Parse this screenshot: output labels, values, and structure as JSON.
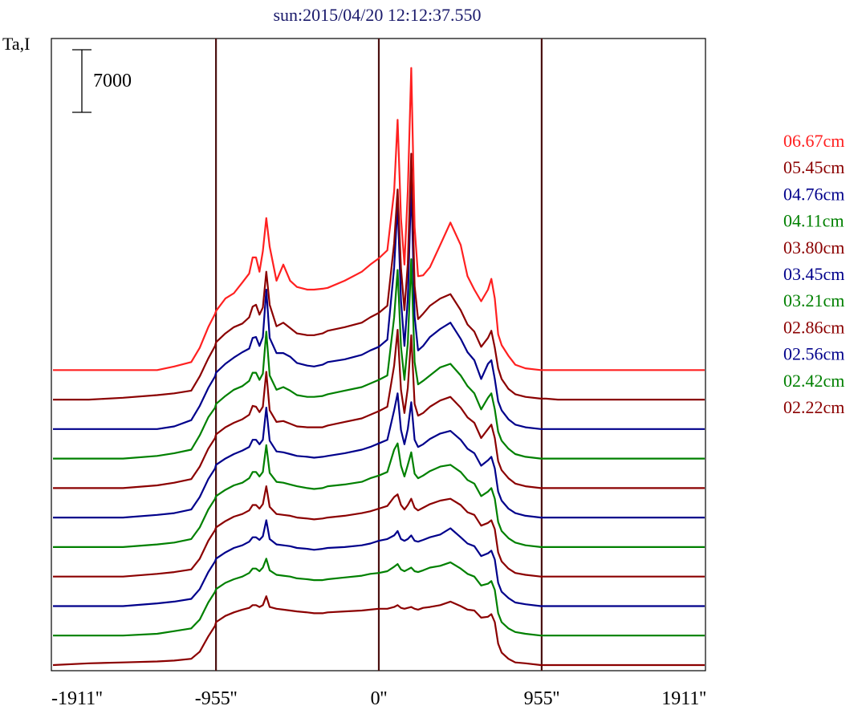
{
  "chart_data": {
    "type": "line",
    "title": "sun:2015/04/20 12:12:37.550",
    "ylabel": "Ta,I",
    "scale_bar_label": "7000",
    "xlim": [
      -1911,
      1911
    ],
    "x_ticks": [
      {
        "value": -1911,
        "label": "-1911''"
      },
      {
        "value": -955,
        "label": "-955''"
      },
      {
        "value": 0,
        "label": "0''"
      },
      {
        "value": 955,
        "label": "955''"
      },
      {
        "value": 1911,
        "label": "1911''"
      }
    ],
    "vertical_lines_at": [
      -955,
      0,
      955
    ],
    "x": [
      -1911,
      -1700,
      -1500,
      -1300,
      -1200,
      -1100,
      -1050,
      -1000,
      -960,
      -955,
      -900,
      -850,
      -800,
      -760,
      -740,
      -720,
      -700,
      -680,
      -660,
      -640,
      -600,
      -560,
      -520,
      -480,
      -420,
      -380,
      -330,
      -300,
      -200,
      -100,
      -50,
      0,
      50,
      90,
      110,
      130,
      150,
      170,
      190,
      210,
      230,
      260,
      300,
      360,
      420,
      480,
      520,
      560,
      600,
      640,
      660,
      680,
      700,
      720,
      760,
      800,
      860,
      950,
      955,
      980,
      1050,
      1150,
      1300,
      1500,
      1700,
      1850,
      1911
    ],
    "series": [
      {
        "name": "06.67cm",
        "color": "#ff2020",
        "offset": 33000,
        "profile": [
          0,
          0,
          0,
          0,
          400,
          900,
          2500,
          4800,
          6300,
          6600,
          8000,
          8600,
          9800,
          10800,
          12600,
          12600,
          11000,
          13300,
          17000,
          13800,
          10000,
          11800,
          10000,
          9300,
          9000,
          9000,
          9100,
          9200,
          10000,
          11000,
          11800,
          12500,
          13400,
          20000,
          28000,
          17000,
          11800,
          20000,
          33800,
          16000,
          10500,
          10600,
          11500,
          14000,
          16500,
          14000,
          10500,
          9000,
          7700,
          9000,
          10200,
          8000,
          4000,
          2800,
          1600,
          600,
          200,
          0,
          0,
          0,
          0,
          0,
          0,
          0,
          0,
          0,
          0
        ]
      },
      {
        "name": "05.45cm",
        "color": "#8b0000",
        "offset": 29700,
        "profile": [
          0,
          0,
          200,
          500,
          700,
          1000,
          2600,
          4600,
          6000,
          6400,
          7400,
          8100,
          8500,
          9200,
          10400,
          10600,
          9500,
          10300,
          14300,
          10600,
          8200,
          8600,
          8000,
          7400,
          7200,
          7200,
          7400,
          7700,
          8100,
          8600,
          9200,
          9700,
          10500,
          17500,
          23500,
          14700,
          10000,
          15200,
          27500,
          12700,
          9000,
          9600,
          10500,
          11300,
          11800,
          10000,
          8400,
          7600,
          5900,
          6900,
          7700,
          5800,
          3500,
          2300,
          1200,
          600,
          300,
          100,
          100,
          100,
          0,
          0,
          0,
          0,
          0,
          0,
          0
        ]
      },
      {
        "name": "04.76cm",
        "color": "#00008b",
        "offset": 26400,
        "profile": [
          0,
          0,
          0,
          0,
          300,
          1000,
          2600,
          4600,
          5900,
          6300,
          7300,
          8000,
          8600,
          9000,
          10200,
          10300,
          9300,
          10300,
          15600,
          10200,
          8500,
          8500,
          8100,
          7400,
          7100,
          7000,
          7200,
          7500,
          7800,
          8300,
          8800,
          9200,
          10000,
          18100,
          25200,
          14400,
          9300,
          14500,
          27500,
          12600,
          8800,
          9300,
          10300,
          11200,
          11900,
          10100,
          8600,
          7700,
          5600,
          7300,
          7700,
          5600,
          3100,
          2100,
          1100,
          500,
          200,
          0,
          0,
          0,
          0,
          0,
          0,
          0,
          0,
          0,
          0
        ]
      },
      {
        "name": "04.11cm",
        "color": "#008000",
        "offset": 23100,
        "profile": [
          0,
          0,
          0,
          300,
          600,
          1000,
          2600,
          4600,
          5700,
          6100,
          7000,
          7700,
          8100,
          8700,
          9600,
          9600,
          8800,
          9500,
          14200,
          9300,
          7700,
          8000,
          7600,
          7100,
          6900,
          6900,
          7000,
          7200,
          7600,
          8000,
          8400,
          8800,
          9300,
          15800,
          21100,
          12500,
          8800,
          12900,
          22300,
          10800,
          8300,
          8700,
          9300,
          10200,
          10600,
          9300,
          8100,
          7300,
          5500,
          6800,
          7300,
          5500,
          3000,
          2000,
          1100,
          500,
          200,
          0,
          0,
          0,
          0,
          0,
          0,
          0,
          0,
          0,
          0
        ]
      },
      {
        "name": "03.80cm",
        "color": "#8b0000",
        "offset": 19800,
        "profile": [
          0,
          0,
          0,
          300,
          600,
          1000,
          2400,
          4400,
          5600,
          6000,
          6800,
          7300,
          7700,
          8200,
          9200,
          9100,
          8500,
          9100,
          13000,
          8700,
          7400,
          7500,
          7200,
          6900,
          6800,
          6800,
          6800,
          7000,
          7400,
          7800,
          8200,
          8600,
          9100,
          13700,
          17700,
          11000,
          8400,
          11200,
          17100,
          9400,
          8100,
          8400,
          9100,
          9800,
          10200,
          9000,
          7900,
          7300,
          5600,
          6600,
          7100,
          5600,
          3000,
          2000,
          1100,
          500,
          200,
          0,
          0,
          0,
          0,
          0,
          0,
          0,
          0,
          0,
          0
        ]
      },
      {
        "name": "03.45cm",
        "color": "#00008b",
        "offset": 16500,
        "profile": [
          0,
          0,
          0,
          300,
          500,
          900,
          2300,
          4300,
          5500,
          5900,
          6600,
          7100,
          7500,
          7900,
          8700,
          8700,
          8200,
          8700,
          12300,
          8600,
          7400,
          7300,
          7100,
          6900,
          6800,
          6700,
          6800,
          6900,
          7200,
          7600,
          7900,
          8300,
          8700,
          12000,
          13900,
          9800,
          8200,
          9900,
          12900,
          8700,
          7900,
          8200,
          8800,
          9400,
          9700,
          8700,
          7700,
          7200,
          5800,
          6400,
          6800,
          5500,
          2900,
          1900,
          1000,
          500,
          200,
          0,
          0,
          0,
          0,
          0,
          0,
          0,
          0,
          0,
          0
        ]
      },
      {
        "name": "03.21cm",
        "color": "#008000",
        "offset": 13200,
        "profile": [
          0,
          0,
          0,
          300,
          500,
          900,
          2200,
          4200,
          5400,
          5700,
          6400,
          6900,
          7200,
          7700,
          8400,
          8400,
          7900,
          8400,
          11400,
          8300,
          7300,
          7200,
          7000,
          6800,
          6600,
          6500,
          6600,
          6800,
          7000,
          7300,
          7700,
          8000,
          8400,
          10900,
          11600,
          9100,
          7900,
          9200,
          10600,
          8200,
          7700,
          8000,
          8500,
          9000,
          9200,
          8400,
          7500,
          7100,
          5700,
          6200,
          6600,
          5400,
          2800,
          1800,
          1000,
          500,
          200,
          0,
          0,
          0,
          0,
          0,
          0,
          0,
          0,
          0,
          0
        ]
      },
      {
        "name": "02.86cm",
        "color": "#8b0000",
        "offset": 9900,
        "profile": [
          0,
          0,
          0,
          300,
          500,
          800,
          2000,
          4000,
          5200,
          5500,
          6200,
          6700,
          7000,
          7400,
          8000,
          8000,
          7600,
          8100,
          10100,
          7800,
          7000,
          6900,
          6800,
          6600,
          6500,
          6400,
          6500,
          6600,
          6800,
          7100,
          7300,
          7600,
          7900,
          8900,
          9200,
          8000,
          7500,
          8000,
          8700,
          7700,
          7400,
          7700,
          8100,
          8500,
          8700,
          8000,
          7200,
          6900,
          5700,
          6000,
          6300,
          5300,
          2700,
          1700,
          900,
          400,
          200,
          0,
          0,
          0,
          0,
          0,
          0,
          0,
          0,
          0,
          0
        ]
      },
      {
        "name": "02.56cm",
        "color": "#00008b",
        "offset": 6600,
        "profile": [
          0,
          0,
          0,
          300,
          500,
          800,
          1900,
          3800,
          5000,
          5300,
          6000,
          6500,
          6800,
          7200,
          7700,
          7700,
          7400,
          7800,
          9600,
          7500,
          6900,
          6800,
          6700,
          6500,
          6400,
          6300,
          6400,
          6500,
          6600,
          6800,
          7000,
          7300,
          7500,
          7900,
          8400,
          7500,
          7300,
          7500,
          7900,
          7300,
          7200,
          7400,
          7700,
          8000,
          8700,
          7700,
          7000,
          6700,
          5600,
          5900,
          6200,
          5200,
          2600,
          1600,
          900,
          400,
          200,
          0,
          0,
          0,
          0,
          0,
          0,
          0,
          0,
          0,
          0
        ]
      },
      {
        "name": "02.42cm",
        "color": "#008000",
        "offset": 3300,
        "profile": [
          0,
          0,
          0,
          200,
          500,
          800,
          1800,
          3700,
          4900,
          5200,
          5900,
          6300,
          6600,
          7000,
          7500,
          7500,
          7200,
          7600,
          8600,
          7300,
          6800,
          6700,
          6600,
          6400,
          6300,
          6200,
          6200,
          6300,
          6500,
          6700,
          6900,
          7000,
          7200,
          7700,
          8000,
          7400,
          7200,
          7400,
          7600,
          7200,
          7100,
          7300,
          7600,
          7800,
          8200,
          7500,
          6900,
          6600,
          5600,
          5800,
          6100,
          5100,
          2500,
          1500,
          800,
          400,
          200,
          0,
          0,
          0,
          0,
          0,
          0,
          0,
          0,
          0,
          0
        ]
      },
      {
        "name": "02.22cm",
        "color": "#8b0000",
        "offset": 0,
        "profile": [
          0,
          200,
          300,
          400,
          500,
          700,
          1500,
          3200,
          4400,
          4800,
          5500,
          5900,
          6200,
          6400,
          6700,
          6700,
          6500,
          6700,
          7700,
          6500,
          6300,
          6200,
          6100,
          6000,
          5900,
          5800,
          5800,
          5900,
          6000,
          6100,
          6200,
          6300,
          6300,
          6500,
          6700,
          6400,
          6300,
          6400,
          6500,
          6300,
          6200,
          6400,
          6500,
          6700,
          7100,
          6600,
          6200,
          6100,
          5300,
          5400,
          5700,
          4800,
          2400,
          1400,
          700,
          300,
          200,
          0,
          0,
          0,
          0,
          0,
          0,
          0,
          0,
          0,
          0
        ]
      }
    ]
  }
}
